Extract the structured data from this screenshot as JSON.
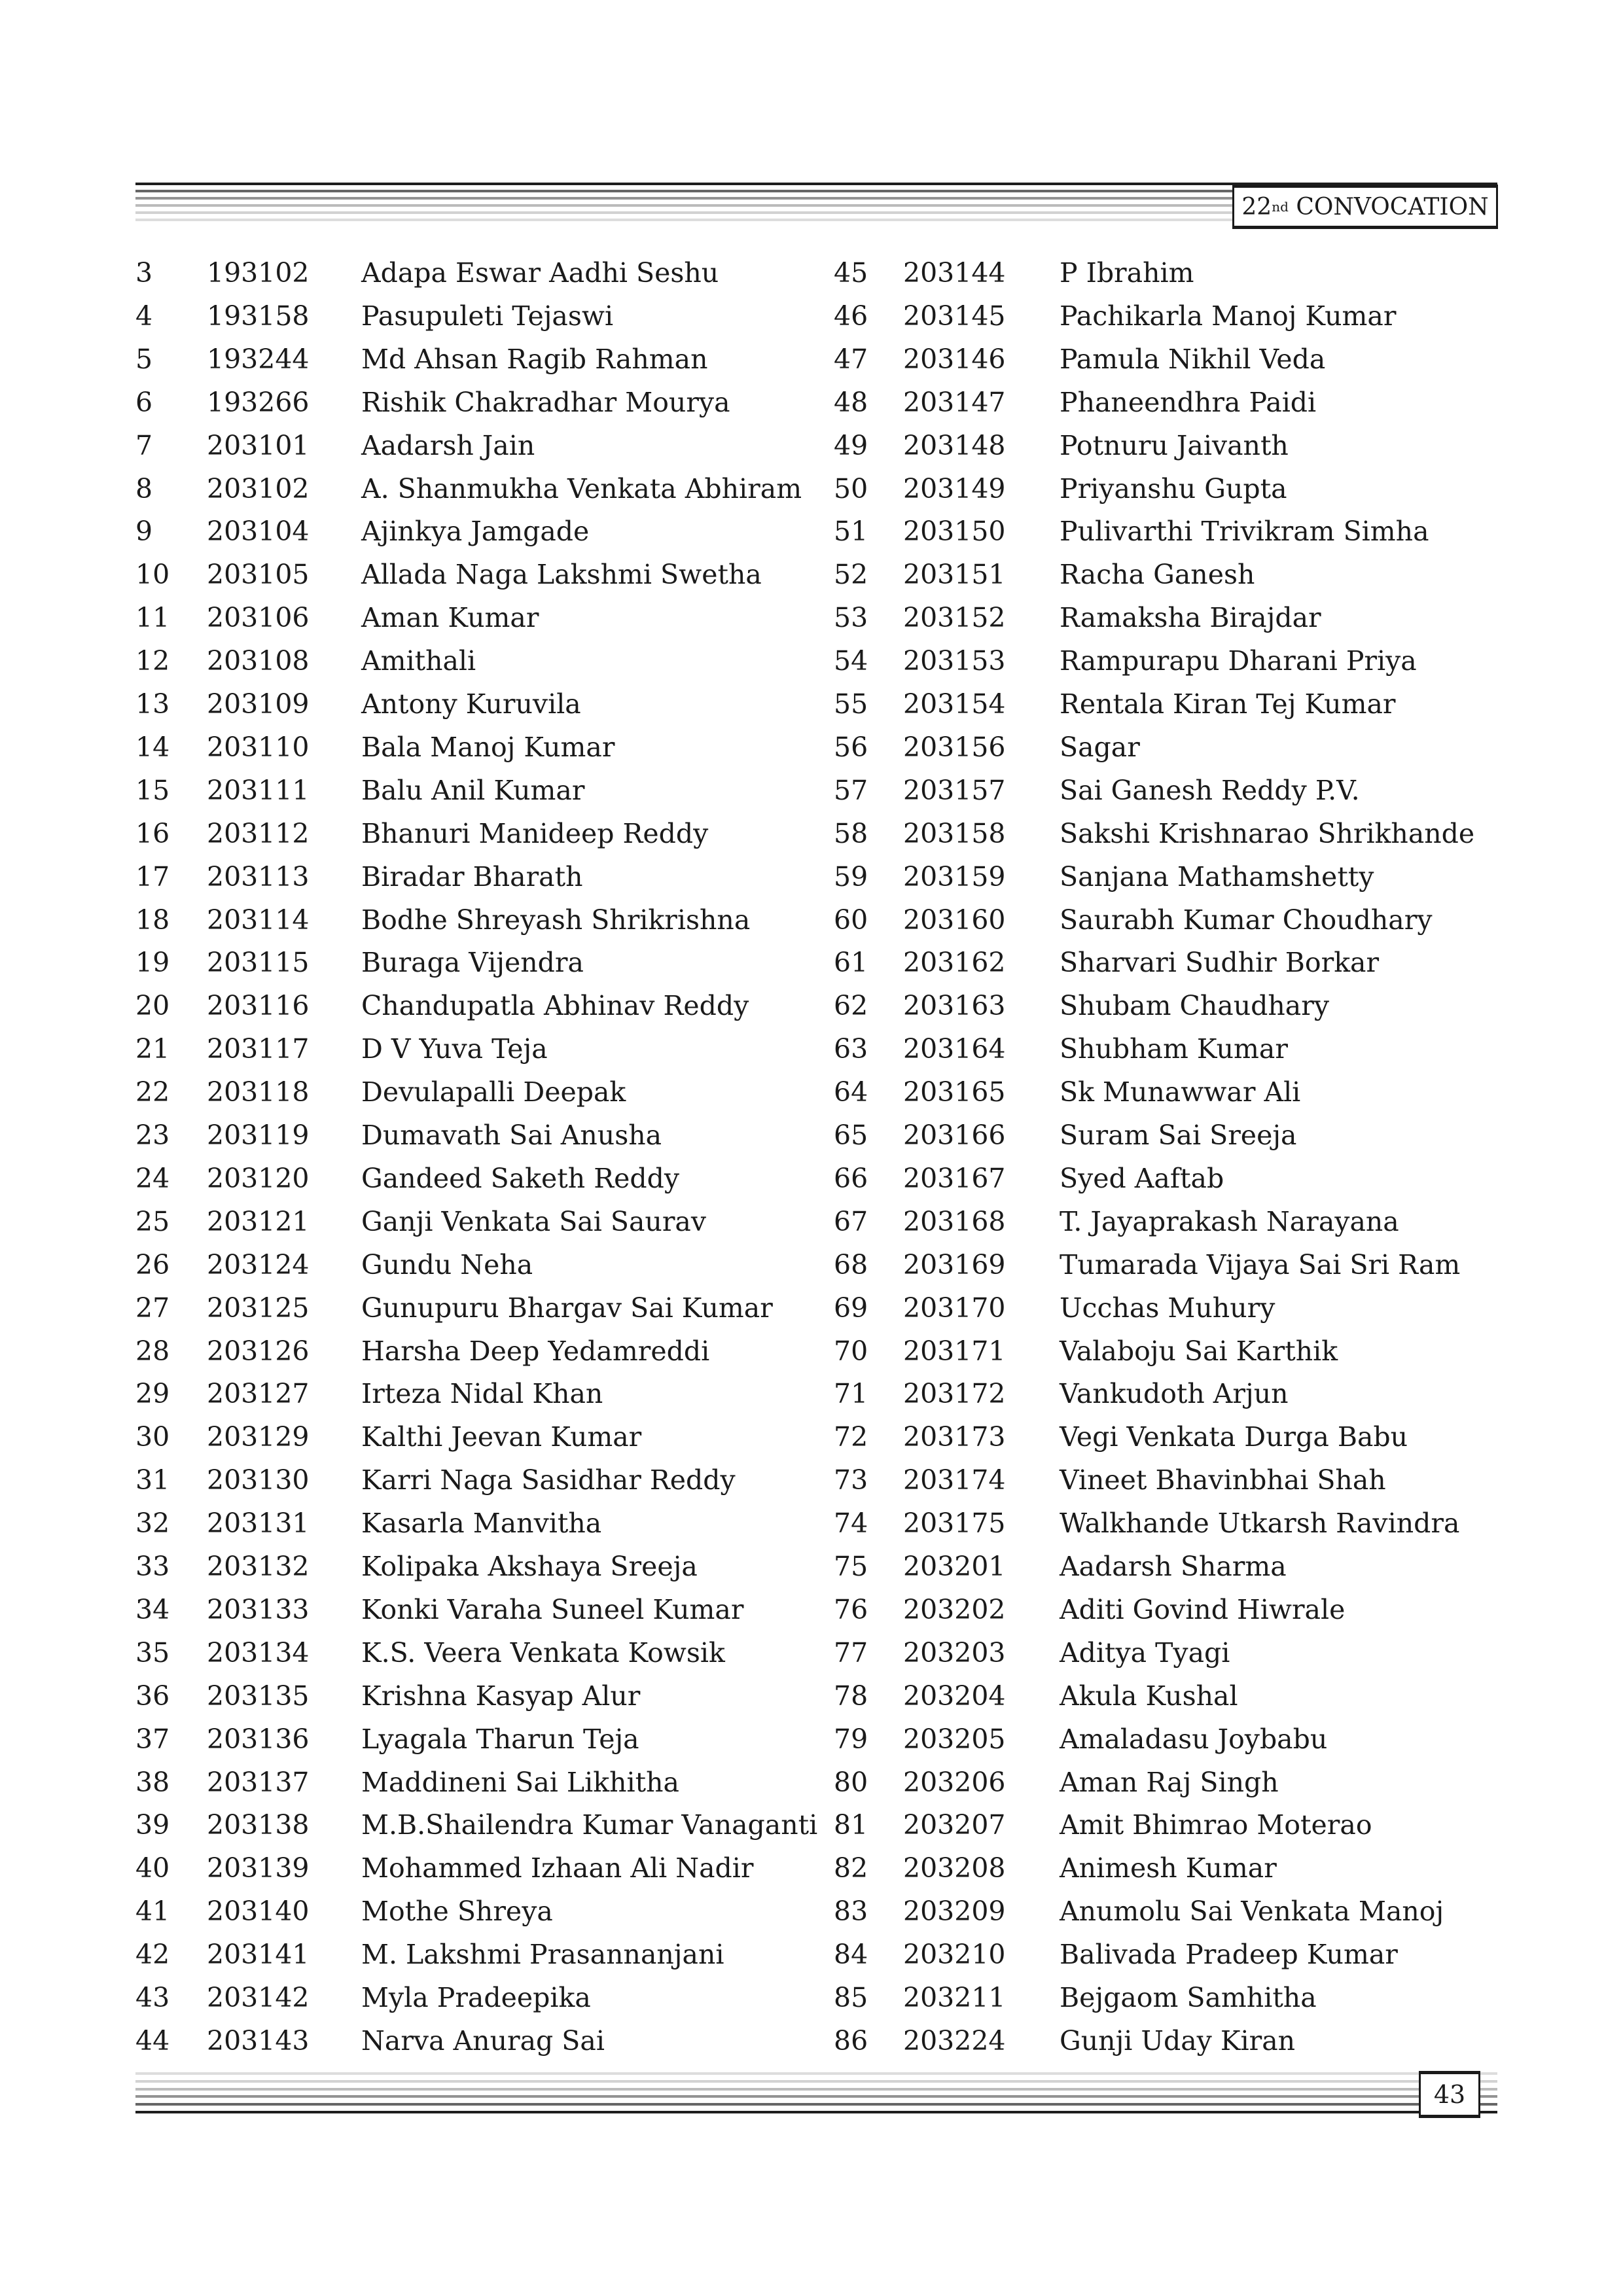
{
  "header": {
    "ordinal": "22",
    "ordinal_suffix": "nd",
    "title": "CONVOCATION"
  },
  "footer": {
    "page_number": "43"
  },
  "left_column": [
    [
      "3",
      "193102",
      "Adapa Eswar Aadhi Seshu"
    ],
    [
      "4",
      "193158",
      "Pasupuleti Tejaswi"
    ],
    [
      "5",
      "193244",
      "Md Ahsan Ragib Rahman"
    ],
    [
      "6",
      "193266",
      "Rishik Chakradhar Mourya"
    ],
    [
      "7",
      "203101",
      "Aadarsh Jain"
    ],
    [
      "8",
      "203102",
      "A. Shanmukha Venkata Abhiram"
    ],
    [
      "9",
      "203104",
      "Ajinkya Jamgade"
    ],
    [
      "10",
      "203105",
      "Allada Naga Lakshmi Swetha"
    ],
    [
      "11",
      "203106",
      "Aman Kumar"
    ],
    [
      "12",
      "203108",
      "Amithali"
    ],
    [
      "13",
      "203109",
      "Antony Kuruvila"
    ],
    [
      "14",
      "203110",
      "Bala Manoj Kumar"
    ],
    [
      "15",
      "203111",
      "Balu Anil Kumar"
    ],
    [
      "16",
      "203112",
      "Bhanuri Manideep Reddy"
    ],
    [
      "17",
      "203113",
      "Biradar Bharath"
    ],
    [
      "18",
      "203114",
      "Bodhe Shreyash Shrikrishna"
    ],
    [
      "19",
      "203115",
      "Buraga Vijendra"
    ],
    [
      "20",
      "203116",
      "Chandupatla Abhinav Reddy"
    ],
    [
      "21",
      "203117",
      "D V Yuva Teja"
    ],
    [
      "22",
      "203118",
      "Devulapalli Deepak"
    ],
    [
      "23",
      "203119",
      "Dumavath Sai Anusha"
    ],
    [
      "24",
      "203120",
      "Gandeed Saketh Reddy"
    ],
    [
      "25",
      "203121",
      "Ganji Venkata Sai Saurav"
    ],
    [
      "26",
      "203124",
      "Gundu Neha"
    ],
    [
      "27",
      "203125",
      "Gunupuru Bhargav Sai Kumar"
    ],
    [
      "28",
      "203126",
      "Harsha Deep Yedamreddi"
    ],
    [
      "29",
      "203127",
      "Irteza Nidal Khan"
    ],
    [
      "30",
      "203129",
      "Kalthi Jeevan Kumar"
    ],
    [
      "31",
      "203130",
      "Karri Naga Sasidhar Reddy"
    ],
    [
      "32",
      "203131",
      "Kasarla Manvitha"
    ],
    [
      "33",
      "203132",
      "Kolipaka Akshaya Sreeja"
    ],
    [
      "34",
      "203133",
      "Konki Varaha Suneel Kumar"
    ],
    [
      "35",
      "203134",
      "K.S. Veera Venkata Kowsik"
    ],
    [
      "36",
      "203135",
      "Krishna Kasyap Alur"
    ],
    [
      "37",
      "203136",
      "Lyagala Tharun Teja"
    ],
    [
      "38",
      "203137",
      "Maddineni Sai Likhitha"
    ],
    [
      "39",
      "203138",
      "M.B.Shailendra Kumar Vanaganti"
    ],
    [
      "40",
      "203139",
      "Mohammed Izhaan Ali Nadir"
    ],
    [
      "41",
      "203140",
      "Mothe Shreya"
    ],
    [
      "42",
      "203141",
      "M. Lakshmi Prasannanjani"
    ],
    [
      "43",
      "203142",
      "Myla Pradeepika"
    ],
    [
      "44",
      "203143",
      "Narva Anurag Sai"
    ]
  ],
  "right_column": [
    [
      "45",
      "203144",
      "P Ibrahim"
    ],
    [
      "46",
      "203145",
      "Pachikarla Manoj Kumar"
    ],
    [
      "47",
      "203146",
      "Pamula Nikhil Veda"
    ],
    [
      "48",
      "203147",
      "Phaneendhra Paidi"
    ],
    [
      "49",
      "203148",
      "Potnuru Jaivanth"
    ],
    [
      "50",
      "203149",
      "Priyanshu Gupta"
    ],
    [
      "51",
      "203150",
      "Pulivarthi Trivikram Simha"
    ],
    [
      "52",
      "203151",
      "Racha Ganesh"
    ],
    [
      "53",
      "203152",
      "Ramaksha Birajdar"
    ],
    [
      "54",
      "203153",
      "Rampurapu Dharani Priya"
    ],
    [
      "55",
      "203154",
      "Rentala Kiran Tej Kumar"
    ],
    [
      "56",
      "203156",
      "Sagar"
    ],
    [
      "57",
      "203157",
      "Sai Ganesh Reddy P.V."
    ],
    [
      "58",
      "203158",
      "Sakshi Krishnarao Shrikhande"
    ],
    [
      "59",
      "203159",
      "Sanjana Mathamshetty"
    ],
    [
      "60",
      "203160",
      "Saurabh Kumar Choudhary"
    ],
    [
      "61",
      "203162",
      "Sharvari Sudhir Borkar"
    ],
    [
      "62",
      "203163",
      "Shubam Chaudhary"
    ],
    [
      "63",
      "203164",
      "Shubham Kumar"
    ],
    [
      "64",
      "203165",
      "Sk Munawwar Ali"
    ],
    [
      "65",
      "203166",
      "Suram Sai Sreeja"
    ],
    [
      "66",
      "203167",
      "Syed Aaftab"
    ],
    [
      "67",
      "203168",
      "T. Jayaprakash Narayana"
    ],
    [
      "68",
      "203169",
      "Tumarada Vijaya Sai Sri Ram"
    ],
    [
      "69",
      "203170",
      "Ucchas Muhury"
    ],
    [
      "70",
      "203171",
      "Valaboju Sai Karthik"
    ],
    [
      "71",
      "203172",
      "Vankudoth Arjun"
    ],
    [
      "72",
      "203173",
      "Vegi Venkata Durga Babu"
    ],
    [
      "73",
      "203174",
      "Vineet Bhavinbhai Shah"
    ],
    [
      "74",
      "203175",
      "Walkhande Utkarsh Ravindra"
    ],
    [
      "75",
      "203201",
      "Aadarsh Sharma"
    ],
    [
      "76",
      "203202",
      "Aditi Govind Hiwrale"
    ],
    [
      "77",
      "203203",
      "Aditya Tyagi"
    ],
    [
      "78",
      "203204",
      "Akula Kushal"
    ],
    [
      "79",
      "203205",
      "Amaladasu Joybabu"
    ],
    [
      "80",
      "203206",
      "Aman Raj Singh"
    ],
    [
      "81",
      "203207",
      "Amit Bhimrao Moterao"
    ],
    [
      "82",
      "203208",
      "Animesh Kumar"
    ],
    [
      "83",
      "203209",
      "Anumolu Sai Venkata Manoj"
    ],
    [
      "84",
      "203210",
      "Balivada Pradeep Kumar"
    ],
    [
      "85",
      "203211",
      "Bejgaom Samhitha"
    ],
    [
      "86",
      "203224",
      "Gunji Uday Kiran"
    ]
  ]
}
